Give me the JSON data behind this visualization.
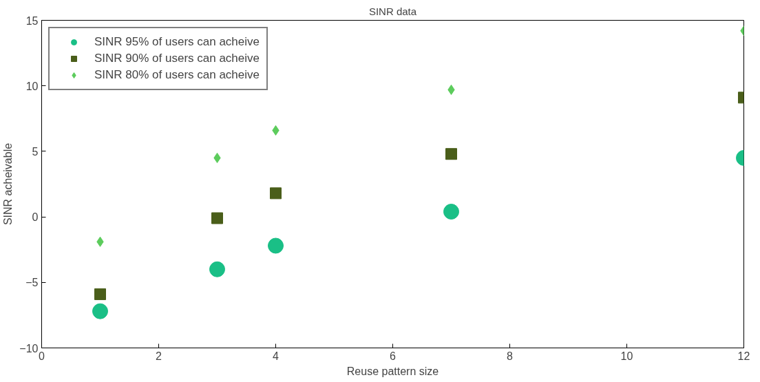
{
  "chart_data": {
    "type": "scatter",
    "title": "SINR data",
    "xlabel": "Reuse pattern size",
    "ylabel": "SINR acheivable",
    "x": [
      1,
      3,
      4,
      7,
      12
    ],
    "series": [
      {
        "name": "SINR 95% of users can acheive",
        "color": "#1abf86",
        "marker": "circle",
        "values": [
          -7.2,
          -4.0,
          -2.2,
          0.4,
          4.5
        ]
      },
      {
        "name": "SINR 90% of users can acheive",
        "color": "#4a5e1a",
        "marker": "square",
        "values": [
          -5.9,
          -0.1,
          1.8,
          4.8,
          9.1
        ]
      },
      {
        "name": "SINR 80% of users can acheive",
        "color": "#5ccc5c",
        "marker": "diamond",
        "values": [
          -1.9,
          4.5,
          6.6,
          9.7,
          14.2
        ]
      }
    ],
    "xlim": [
      0,
      12
    ],
    "ylim": [
      -10,
      15
    ],
    "xticks": [
      0,
      2,
      4,
      6,
      8,
      10,
      12
    ],
    "yticks": [
      -10,
      -5,
      0,
      5,
      10,
      15
    ],
    "grid": false,
    "legend": "top left"
  }
}
